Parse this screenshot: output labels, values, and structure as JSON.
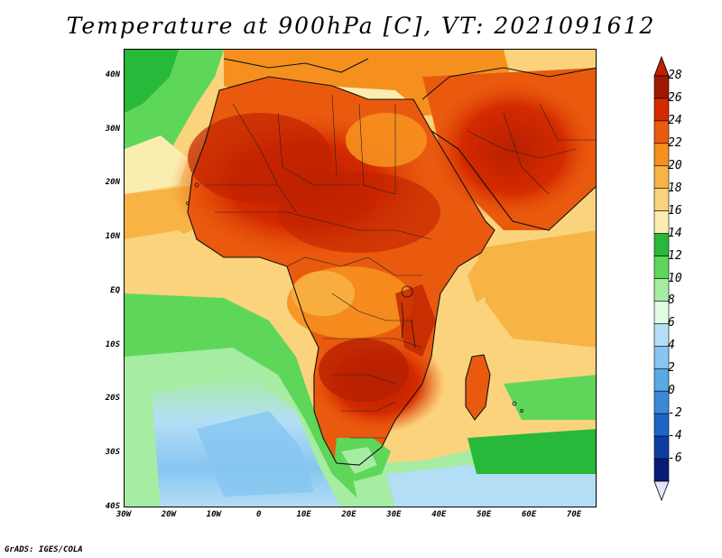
{
  "title": "Temperature at 900hPa [C], VT: 2021091612",
  "credit": "GrADS: IGES/COLA",
  "map": {
    "lon_range": [
      -30,
      75
    ],
    "lat_range": [
      -40,
      45
    ],
    "lat_labels": [
      "40N",
      "30N",
      "20N",
      "10N",
      "EQ",
      "10S",
      "20S",
      "30S",
      "40S"
    ],
    "lat_values": [
      40,
      30,
      20,
      10,
      0,
      -10,
      -20,
      -30,
      -40
    ],
    "lon_labels": [
      "30W",
      "20W",
      "10W",
      "0",
      "10E",
      "20E",
      "30E",
      "40E",
      "50E",
      "60E",
      "70E"
    ],
    "lon_values": [
      -30,
      -20,
      -10,
      0,
      10,
      20,
      30,
      40,
      50,
      60,
      70
    ]
  },
  "colorbar": {
    "labels": [
      "28",
      "26",
      "24",
      "22",
      "20",
      "18",
      "16",
      "14",
      "12",
      "10",
      "8",
      "6",
      "4",
      "2",
      "0",
      "-2",
      "-4",
      "-6"
    ],
    "colors": [
      "#a01800",
      "#d42a00",
      "#ea5a0e",
      "#f5901e",
      "#f7b445",
      "#fad37c",
      "#fbedb0",
      "#28b83a",
      "#5ed65a",
      "#a6eca2",
      "#e2fbe2",
      "#b4def6",
      "#86c6f0",
      "#5aa8e4",
      "#3a88d8",
      "#1e64c6",
      "#0c3ea2",
      "#0a1a78"
    ],
    "top_arrow_color": "#c02000",
    "bottom_arrow_color": "#e4e4fa"
  }
}
